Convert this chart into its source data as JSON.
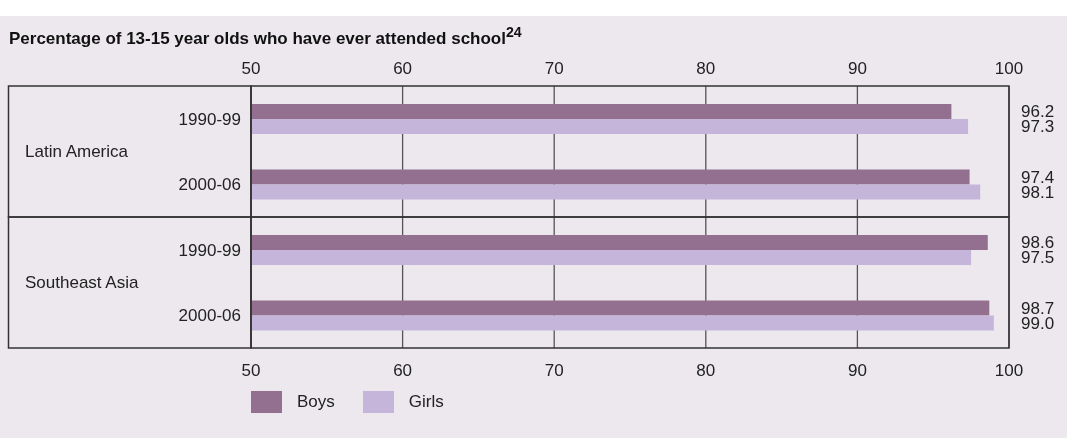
{
  "chart_data": {
    "type": "bar",
    "orientation": "horizontal",
    "title": "Percentage of 13-15 year olds who have ever attended school$^{24}$",
    "categories": [
      "1990-99",
      "2000-06",
      "1990-99",
      "2000-06"
    ],
    "annotations": [
      "Latin America",
      "Southeast Asia"
    ],
    "series": [
      {
        "name": "Boys",
        "color": "#93708f",
        "values": [
          96.2,
          97.4,
          98.6,
          98.7
        ],
        "value_labels": [
          "96.2",
          "97.4",
          "98.6",
          "98.7"
        ]
      },
      {
        "name": "Girls",
        "color": "#c6b5da",
        "values": [
          97.3,
          98.1,
          97.5,
          99.0
        ],
        "value_labels": [
          "97.3",
          "98.1",
          "97.5",
          "99.0"
        ]
      }
    ],
    "xlim": [
      50,
      100
    ],
    "xticks": [
      50,
      60,
      70,
      80,
      90,
      100
    ],
    "x2lim": [
      50,
      100
    ],
    "x2ticks": [
      50,
      60,
      70,
      80,
      90,
      100
    ],
    "grid": "x",
    "legend": "bottom left"
  }
}
